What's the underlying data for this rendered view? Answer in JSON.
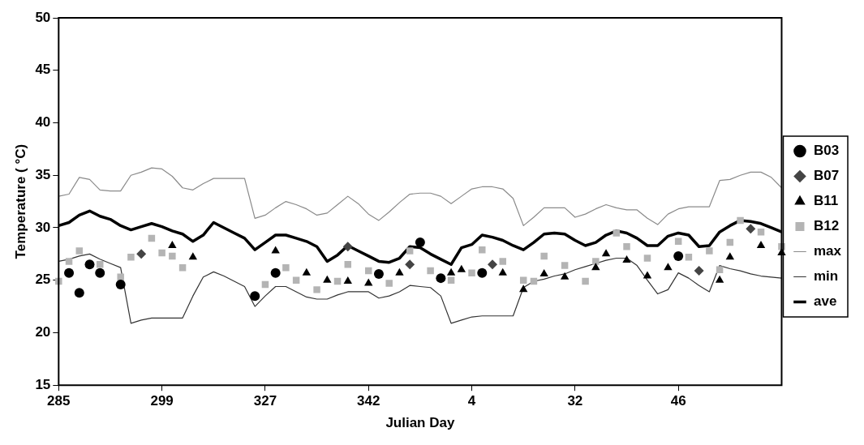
{
  "chart_data": {
    "type": "line",
    "xlabel": "Julian Day",
    "ylabel": "Temperature ( °C)",
    "categories": [
      "285",
      null,
      null,
      null,
      null,
      null,
      null,
      null,
      null,
      null,
      "299",
      null,
      null,
      null,
      null,
      null,
      null,
      null,
      null,
      null,
      "327",
      null,
      null,
      null,
      null,
      null,
      null,
      null,
      null,
      null,
      "342",
      null,
      null,
      null,
      null,
      null,
      null,
      null,
      null,
      null,
      "4",
      null,
      null,
      null,
      null,
      null,
      null,
      null,
      null,
      null,
      "32",
      null,
      null,
      null,
      null,
      null,
      null,
      null,
      null,
      null,
      "46",
      null,
      null,
      null,
      null,
      null,
      null,
      null,
      null,
      null,
      null
    ],
    "ylim": [
      15,
      50
    ],
    "yticks": [
      15,
      20,
      25,
      30,
      35,
      40,
      45,
      50
    ],
    "grid": false,
    "legend": "right",
    "series": [
      {
        "name": "max",
        "type": "line",
        "color": "#8a8a8a",
        "marker": "none",
        "values": [
          33.0,
          33.2,
          34.8,
          34.6,
          33.6,
          33.5,
          33.5,
          35.0,
          35.3,
          35.7,
          35.6,
          34.9,
          33.8,
          33.6,
          34.2,
          34.7,
          34.7,
          34.7,
          34.7,
          30.9,
          31.2,
          31.9,
          32.5,
          32.2,
          31.8,
          31.2,
          31.4,
          32.2,
          33.0,
          32.3,
          31.3,
          30.7,
          31.5,
          32.4,
          33.2,
          33.3,
          33.3,
          33.0,
          32.3,
          33.0,
          33.7,
          33.9,
          33.9,
          33.7,
          32.8,
          30.2,
          31.0,
          31.9,
          31.9,
          31.9,
          31.0,
          31.3,
          31.8,
          32.2,
          31.9,
          31.7,
          31.7,
          30.9,
          30.3,
          31.3,
          31.8,
          32.0,
          32.0,
          32.0,
          34.5,
          34.6,
          35.0,
          35.3,
          35.3,
          34.8,
          33.8
        ]
      },
      {
        "name": "min",
        "type": "line",
        "color": "#333333",
        "marker": "none",
        "values": [
          26.8,
          27.0,
          27.3,
          27.5,
          27.0,
          26.6,
          26.2,
          20.9,
          21.2,
          21.4,
          21.4,
          21.4,
          21.4,
          23.5,
          25.3,
          25.8,
          25.4,
          24.9,
          24.4,
          22.5,
          23.5,
          24.4,
          24.4,
          23.9,
          23.4,
          23.2,
          23.2,
          23.6,
          23.9,
          23.9,
          23.9,
          23.3,
          23.5,
          23.9,
          24.5,
          24.4,
          24.3,
          23.5,
          20.9,
          21.2,
          21.5,
          21.6,
          21.6,
          21.6,
          21.6,
          24.3,
          24.9,
          25.1,
          25.4,
          25.6,
          26.0,
          26.3,
          26.6,
          26.9,
          27.1,
          27.1,
          26.4,
          25.0,
          23.7,
          24.1,
          25.7,
          25.2,
          24.5,
          23.9,
          26.4,
          26.1,
          25.9,
          25.6,
          25.4,
          25.3,
          25.2
        ]
      },
      {
        "name": "ave",
        "type": "line",
        "color": "#000000",
        "marker": "none",
        "values": [
          30.2,
          30.5,
          31.2,
          31.6,
          31.1,
          30.8,
          30.2,
          29.8,
          30.1,
          30.4,
          30.1,
          29.7,
          29.4,
          28.7,
          29.3,
          30.5,
          30.0,
          29.5,
          29.0,
          27.9,
          28.6,
          29.3,
          29.3,
          29.0,
          28.7,
          28.2,
          26.8,
          27.4,
          28.3,
          27.8,
          27.3,
          26.8,
          26.7,
          27.1,
          28.2,
          28.1,
          27.5,
          27.0,
          26.5,
          28.1,
          28.4,
          29.3,
          29.1,
          28.8,
          28.3,
          27.9,
          28.6,
          29.4,
          29.5,
          29.4,
          28.8,
          28.3,
          28.6,
          29.3,
          29.7,
          29.5,
          29.0,
          28.3,
          28.3,
          29.2,
          29.5,
          29.3,
          28.2,
          28.3,
          29.6,
          30.2,
          30.7,
          30.6,
          30.4,
          30.0,
          29.6
        ]
      },
      {
        "name": "B03",
        "type": "scatter",
        "color": "#000000",
        "marker": "circle",
        "values": [
          null,
          25.7,
          23.8,
          26.5,
          25.7,
          null,
          24.6,
          null,
          null,
          null,
          null,
          null,
          null,
          null,
          null,
          null,
          null,
          null,
          null,
          23.5,
          null,
          25.7,
          null,
          null,
          null,
          null,
          null,
          null,
          null,
          null,
          null,
          25.6,
          null,
          null,
          null,
          28.6,
          null,
          25.2,
          null,
          null,
          null,
          25.7,
          null,
          null,
          null,
          null,
          null,
          null,
          null,
          null,
          null,
          null,
          null,
          null,
          null,
          null,
          null,
          null,
          null,
          null,
          27.3,
          null,
          null,
          null,
          null,
          null,
          null,
          null,
          null,
          null,
          null
        ]
      },
      {
        "name": "B07",
        "type": "scatter",
        "color": "#444444",
        "marker": "diamond",
        "values": [
          null,
          null,
          null,
          null,
          null,
          null,
          null,
          null,
          27.5,
          null,
          null,
          null,
          null,
          null,
          null,
          null,
          null,
          null,
          null,
          null,
          null,
          null,
          null,
          null,
          null,
          null,
          null,
          null,
          28.2,
          null,
          null,
          null,
          null,
          null,
          26.5,
          null,
          null,
          null,
          null,
          null,
          null,
          null,
          26.5,
          null,
          null,
          null,
          null,
          null,
          null,
          null,
          null,
          null,
          null,
          null,
          null,
          null,
          null,
          null,
          null,
          null,
          null,
          null,
          25.9,
          null,
          null,
          null,
          null,
          29.9,
          null,
          null,
          null
        ]
      },
      {
        "name": "B11",
        "type": "scatter",
        "color": "#000000",
        "marker": "triangle",
        "values": [
          null,
          null,
          null,
          null,
          null,
          null,
          null,
          null,
          null,
          null,
          null,
          28.3,
          null,
          27.2,
          null,
          null,
          null,
          null,
          null,
          null,
          null,
          27.8,
          null,
          null,
          25.7,
          null,
          25.0,
          null,
          24.9,
          null,
          24.7,
          null,
          null,
          25.7,
          null,
          null,
          null,
          null,
          25.7,
          26.0,
          null,
          null,
          null,
          25.7,
          null,
          24.1,
          null,
          25.6,
          null,
          25.3,
          null,
          null,
          26.2,
          27.5,
          null,
          26.9,
          null,
          25.4,
          null,
          26.2,
          null,
          null,
          null,
          null,
          25.0,
          27.2,
          null,
          null,
          28.3,
          null,
          27.6
        ]
      },
      {
        "name": "B12",
        "type": "scatter",
        "color": "#b4b4b4",
        "marker": "square",
        "values": [
          24.9,
          26.8,
          27.8,
          null,
          26.5,
          null,
          25.3,
          27.2,
          null,
          29.0,
          27.6,
          27.3,
          26.2,
          null,
          null,
          null,
          null,
          null,
          null,
          null,
          24.6,
          null,
          26.2,
          25.0,
          null,
          24.1,
          null,
          24.9,
          26.5,
          null,
          25.9,
          null,
          24.7,
          null,
          27.8,
          null,
          25.9,
          null,
          25.0,
          null,
          25.7,
          27.9,
          null,
          26.8,
          null,
          25.0,
          24.9,
          27.3,
          null,
          26.4,
          null,
          24.9,
          26.8,
          null,
          29.5,
          28.2,
          null,
          27.1,
          null,
          null,
          28.7,
          27.2,
          null,
          27.8,
          26.0,
          28.6,
          30.7,
          null,
          29.6,
          null,
          28.2
        ]
      }
    ]
  }
}
